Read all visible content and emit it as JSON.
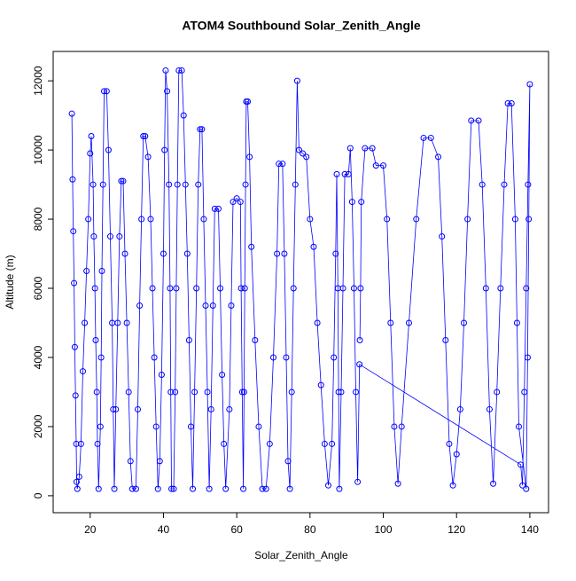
{
  "chart_data": {
    "type": "line",
    "markers": true,
    "title": "ATOM4 Southbound Solar_Zenith_Angle",
    "xlabel": "Solar_Zenith_Angle",
    "ylabel": "Altitude (m)",
    "color": "#0000ff",
    "xlim": [
      9.9,
      145.1
    ],
    "ylim": [
      -490,
      12850
    ],
    "xticks": [
      20,
      40,
      60,
      80,
      100,
      120,
      140
    ],
    "yticks": [
      0,
      2000,
      4000,
      6000,
      8000,
      10000,
      12000
    ],
    "x": [
      15,
      15.2,
      15.4,
      15.6,
      15.8,
      16,
      16.2,
      16.3,
      16.5,
      17,
      17.5,
      18,
      18.5,
      19,
      19.5,
      20,
      20.3,
      20.8,
      21,
      21.3,
      21.5,
      21.8,
      22,
      22.3,
      22.8,
      23,
      23.2,
      23.5,
      23.8,
      24.5,
      25,
      25.5,
      26,
      26.3,
      26.6,
      27,
      27.5,
      28,
      28.5,
      29,
      29.5,
      30,
      30.5,
      31,
      31.5,
      32.5,
      33,
      33.5,
      34,
      34.5,
      35,
      35.8,
      36.5,
      37,
      37.5,
      38,
      38.5,
      39,
      39.5,
      40,
      40.3,
      40.6,
      41,
      41.5,
      41.8,
      42,
      42.2,
      42.8,
      43.2,
      43.5,
      43.8,
      44.2,
      45,
      45.5,
      46,
      46.5,
      47,
      47.5,
      48,
      48.5,
      49,
      49.5,
      50,
      50.5,
      51,
      51.5,
      52,
      52.5,
      53,
      53.5,
      54,
      55,
      55.5,
      56,
      56.5,
      57,
      58,
      58.5,
      59,
      60,
      61,
      61.2,
      61.5,
      61.8,
      62,
      62.2,
      62.4,
      62.6,
      63,
      63.5,
      64,
      65,
      66,
      67,
      68,
      69,
      70,
      71,
      71.5,
      72.5,
      73,
      73.5,
      74,
      74.5,
      75,
      75.5,
      76,
      76.5,
      77,
      78,
      79,
      80,
      81,
      82,
      83,
      84,
      85,
      86,
      86.5,
      87,
      87.3,
      87.6,
      87.8,
      88,
      88.5,
      89,
      89.5,
      90.5,
      91,
      91.5,
      92,
      92.5,
      93,
      93.5,
      137.5,
      138,
      138.5,
      139,
      139.5,
      140,
      139.7,
      139.4,
      139,
      137,
      136.5,
      136,
      135,
      134,
      133,
      132,
      131,
      130,
      129,
      128,
      127,
      126,
      124,
      123,
      122,
      121,
      120,
      119,
      118,
      117,
      116,
      115,
      113,
      111,
      109,
      107,
      105,
      104,
      103,
      102,
      101,
      100,
      98,
      97,
      95,
      94,
      93.8,
      93.6
    ],
    "values": [
      11050,
      9150,
      7650,
      6150,
      4300,
      2900,
      1500,
      400,
      200,
      550,
      1500,
      3600,
      5000,
      6500,
      8000,
      9900,
      10400,
      9000,
      7500,
      6000,
      4500,
      3000,
      1500,
      200,
      2000,
      4000,
      6500,
      9000,
      11700,
      11700,
      10000,
      7500,
      5000,
      2500,
      200,
      2500,
      5000,
      7500,
      9100,
      9100,
      7000,
      5000,
      3000,
      1000,
      200,
      200,
      2500,
      5500,
      8000,
      10400,
      10400,
      9800,
      8000,
      6000,
      4000,
      2000,
      200,
      1000,
      3500,
      7000,
      10000,
      12300,
      11700,
      9000,
      6000,
      3000,
      200,
      200,
      3000,
      6000,
      9000,
      12300,
      12300,
      11000,
      9000,
      7000,
      4500,
      2000,
      200,
      3000,
      6000,
      9000,
      10600,
      10600,
      8000,
      5500,
      3000,
      200,
      2500,
      5500,
      8300,
      8300,
      6000,
      3500,
      1500,
      200,
      2500,
      5500,
      8500,
      8600,
      8500,
      6000,
      3000,
      200,
      3000,
      6000,
      9000,
      11400,
      11400,
      9800,
      7200,
      4500,
      2000,
      200,
      200,
      1500,
      4000,
      7000,
      9600,
      9600,
      7000,
      4000,
      1000,
      200,
      3000,
      6000,
      9000,
      12000,
      10000,
      9900,
      9800,
      8000,
      7200,
      5000,
      3200,
      1500,
      300,
      1500,
      4000,
      7000,
      9300,
      6000,
      3000,
      200,
      3000,
      6000,
      9300,
      9300,
      10050,
      8500,
      6000,
      3000,
      400,
      3800,
      900,
      300,
      3000,
      6000,
      9000,
      11900,
      8000,
      4000,
      200,
      2000,
      5000,
      8000,
      11350,
      11350,
      9000,
      6000,
      3000,
      350,
      2500,
      6000,
      9000,
      10850,
      10850,
      8000,
      5000,
      2500,
      1200,
      300,
      1500,
      4500,
      7500,
      9800,
      10350,
      10350,
      8000,
      5000,
      2000,
      350,
      2000,
      5000,
      8000,
      9550,
      9550,
      10050,
      10050,
      8500,
      6000,
      4500
    ]
  }
}
